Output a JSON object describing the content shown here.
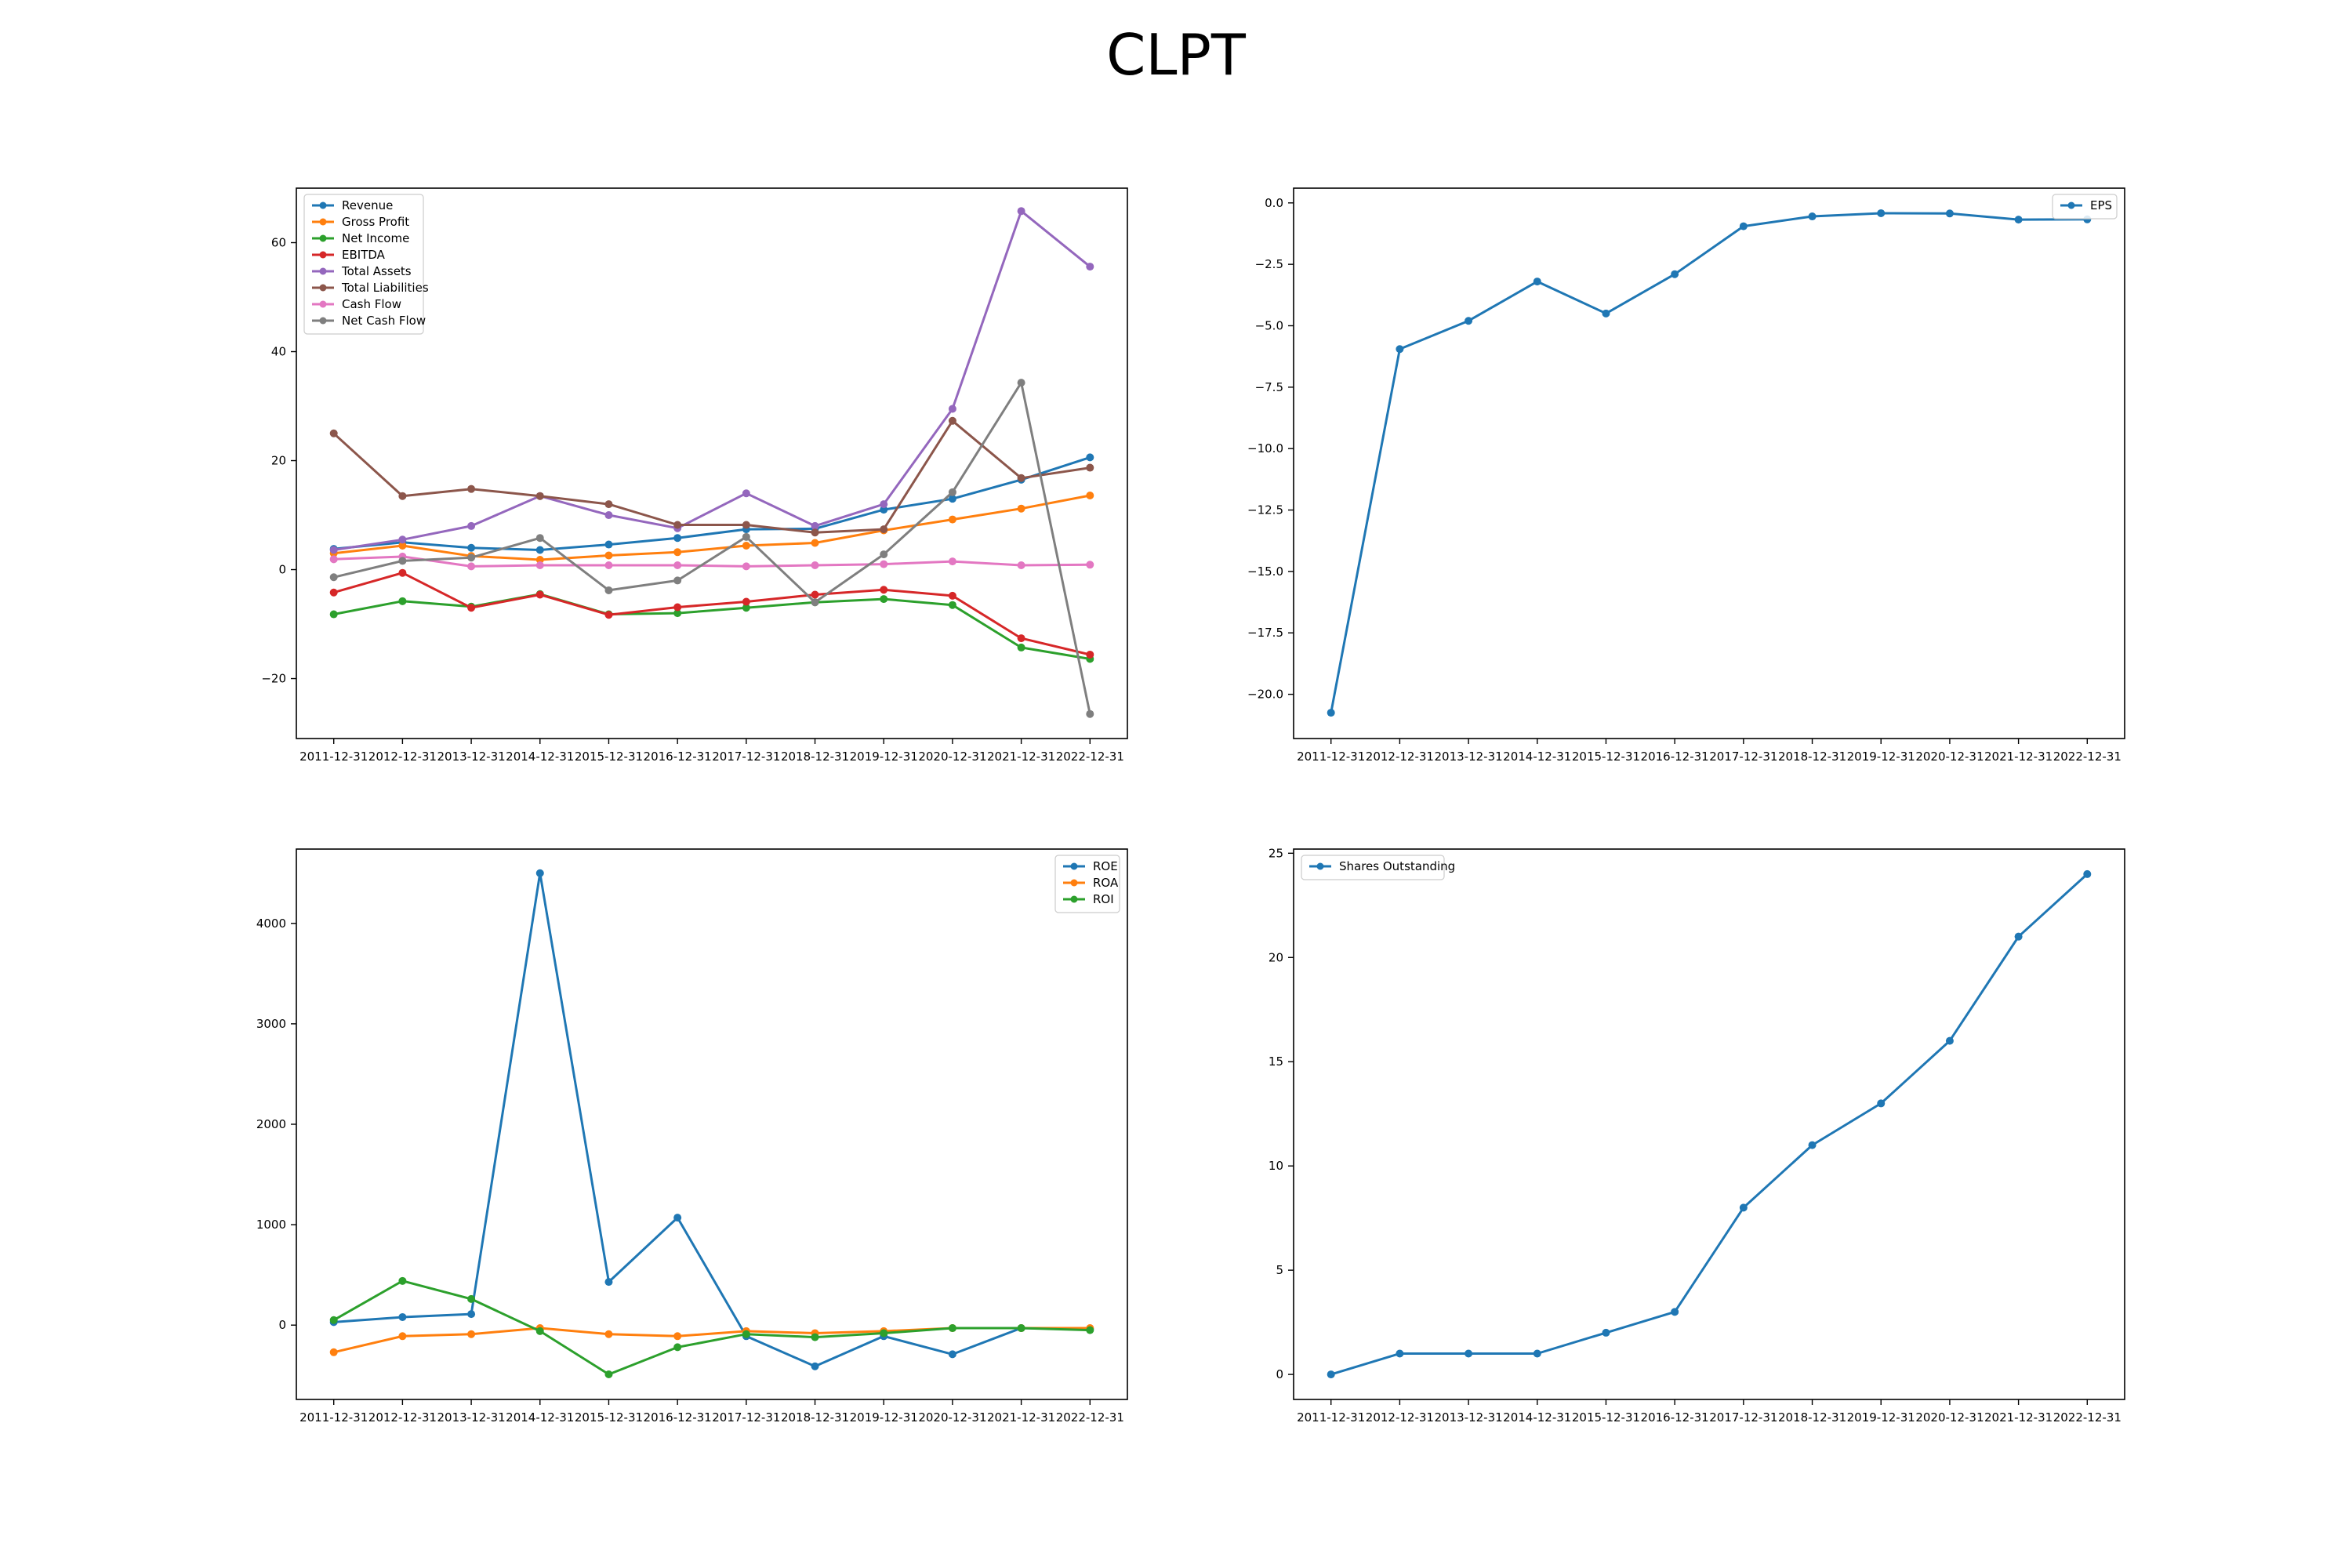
{
  "figure": {
    "title": "CLPT"
  },
  "chart_data": [
    {
      "type": "line",
      "x": [
        "2011-12-31",
        "2012-12-31",
        "2013-12-31",
        "2014-12-31",
        "2015-12-31",
        "2016-12-31",
        "2017-12-31",
        "2018-12-31",
        "2019-12-31",
        "2020-12-31",
        "2021-12-31",
        "2022-12-31"
      ],
      "ylim": [
        -31,
        70
      ],
      "yticks": [
        -20,
        0,
        20,
        40,
        60
      ],
      "legend": "upper-left",
      "series": [
        {
          "name": "Revenue",
          "color": "#1f77b4",
          "values": [
            3.8,
            5.0,
            4.0,
            3.6,
            4.6,
            5.8,
            7.4,
            7.5,
            11.0,
            13.0,
            16.5,
            20.6
          ]
        },
        {
          "name": "Gross Profit",
          "color": "#ff7f0e",
          "values": [
            3.0,
            4.4,
            2.5,
            1.8,
            2.6,
            3.2,
            4.4,
            4.9,
            7.2,
            9.2,
            11.2,
            13.6
          ]
        },
        {
          "name": "Net Income",
          "color": "#2ca02c",
          "values": [
            -8.2,
            -5.8,
            -6.8,
            -4.5,
            -8.2,
            -8.0,
            -7.0,
            -6.0,
            -5.4,
            -6.5,
            -14.3,
            -16.4
          ]
        },
        {
          "name": "EBITDA",
          "color": "#d62728",
          "values": [
            -4.2,
            -0.6,
            -7.0,
            -4.6,
            -8.3,
            -6.9,
            -5.9,
            -4.6,
            -3.7,
            -4.8,
            -12.6,
            -15.6
          ]
        },
        {
          "name": "Total Assets",
          "color": "#9467bd",
          "values": [
            3.6,
            5.5,
            8.0,
            13.5,
            10.0,
            7.6,
            14.0,
            8.0,
            12.0,
            29.5,
            65.8,
            55.6
          ]
        },
        {
          "name": "Total Liabilities",
          "color": "#8c564b",
          "values": [
            25.0,
            13.5,
            14.8,
            13.5,
            12.0,
            8.2,
            8.2,
            6.8,
            7.4,
            27.3,
            16.8,
            18.7
          ]
        },
        {
          "name": "Cash Flow",
          "color": "#e377c2",
          "values": [
            1.9,
            2.4,
            0.6,
            0.8,
            0.8,
            0.8,
            0.6,
            0.8,
            1.0,
            1.5,
            0.8,
            0.9
          ]
        },
        {
          "name": "Net Cash Flow",
          "color": "#7f7f7f",
          "values": [
            -1.4,
            1.6,
            2.2,
            5.8,
            -3.8,
            -2.0,
            6.0,
            -6.0,
            2.8,
            14.2,
            34.3,
            -26.5
          ]
        }
      ]
    },
    {
      "type": "line",
      "x": [
        "2011-12-31",
        "2012-12-31",
        "2013-12-31",
        "2014-12-31",
        "2015-12-31",
        "2016-12-31",
        "2017-12-31",
        "2018-12-31",
        "2019-12-31",
        "2020-12-31",
        "2021-12-31",
        "2022-12-31"
      ],
      "ylim": [
        -21.8,
        0.6
      ],
      "yticks": [
        -20.0,
        -17.5,
        -15.0,
        -12.5,
        -10.0,
        -7.5,
        -5.0,
        -2.5,
        0.0
      ],
      "ytick_labels": [
        "−20.0",
        "−17.5",
        "−15.0",
        "−12.5",
        "−10.0",
        "−7.5",
        "−5.0",
        "−2.5",
        "0.0"
      ],
      "legend": "upper-right",
      "series": [
        {
          "name": "EPS",
          "color": "#1f77b4",
          "values": [
            -20.75,
            -5.95,
            -4.8,
            -3.2,
            -4.5,
            -2.9,
            -0.95,
            -0.55,
            -0.42,
            -0.43,
            -0.68,
            -0.67
          ]
        }
      ]
    },
    {
      "type": "line",
      "x": [
        "2011-12-31",
        "2012-12-31",
        "2013-12-31",
        "2014-12-31",
        "2015-12-31",
        "2016-12-31",
        "2017-12-31",
        "2018-12-31",
        "2019-12-31",
        "2020-12-31",
        "2021-12-31",
        "2022-12-31"
      ],
      "ylim": [
        -740,
        4740
      ],
      "yticks": [
        0,
        1000,
        2000,
        3000,
        4000
      ],
      "legend": "upper-right",
      "series": [
        {
          "name": "ROE",
          "color": "#1f77b4",
          "values": [
            30,
            80,
            110,
            4500,
            430,
            1070,
            -110,
            -410,
            -110,
            -290,
            -30,
            -40
          ]
        },
        {
          "name": "ROA",
          "color": "#ff7f0e",
          "values": [
            -270,
            -110,
            -90,
            -30,
            -90,
            -110,
            -60,
            -80,
            -60,
            -30,
            -30,
            -30
          ]
        },
        {
          "name": "ROI",
          "color": "#2ca02c",
          "values": [
            50,
            440,
            260,
            -60,
            -490,
            -220,
            -90,
            -120,
            -80,
            -30,
            -30,
            -50
          ]
        }
      ]
    },
    {
      "type": "line",
      "x": [
        "2011-12-31",
        "2012-12-31",
        "2013-12-31",
        "2014-12-31",
        "2015-12-31",
        "2016-12-31",
        "2017-12-31",
        "2018-12-31",
        "2019-12-31",
        "2020-12-31",
        "2021-12-31",
        "2022-12-31"
      ],
      "ylim": [
        -1.2,
        25.2
      ],
      "yticks": [
        0,
        5,
        10,
        15,
        20,
        25
      ],
      "legend": "upper-left",
      "series": [
        {
          "name": "Shares Outstanding",
          "color": "#1f77b4",
          "values": [
            0,
            1,
            1,
            1,
            2,
            3,
            8,
            11,
            13,
            16,
            21,
            24
          ]
        }
      ]
    }
  ]
}
